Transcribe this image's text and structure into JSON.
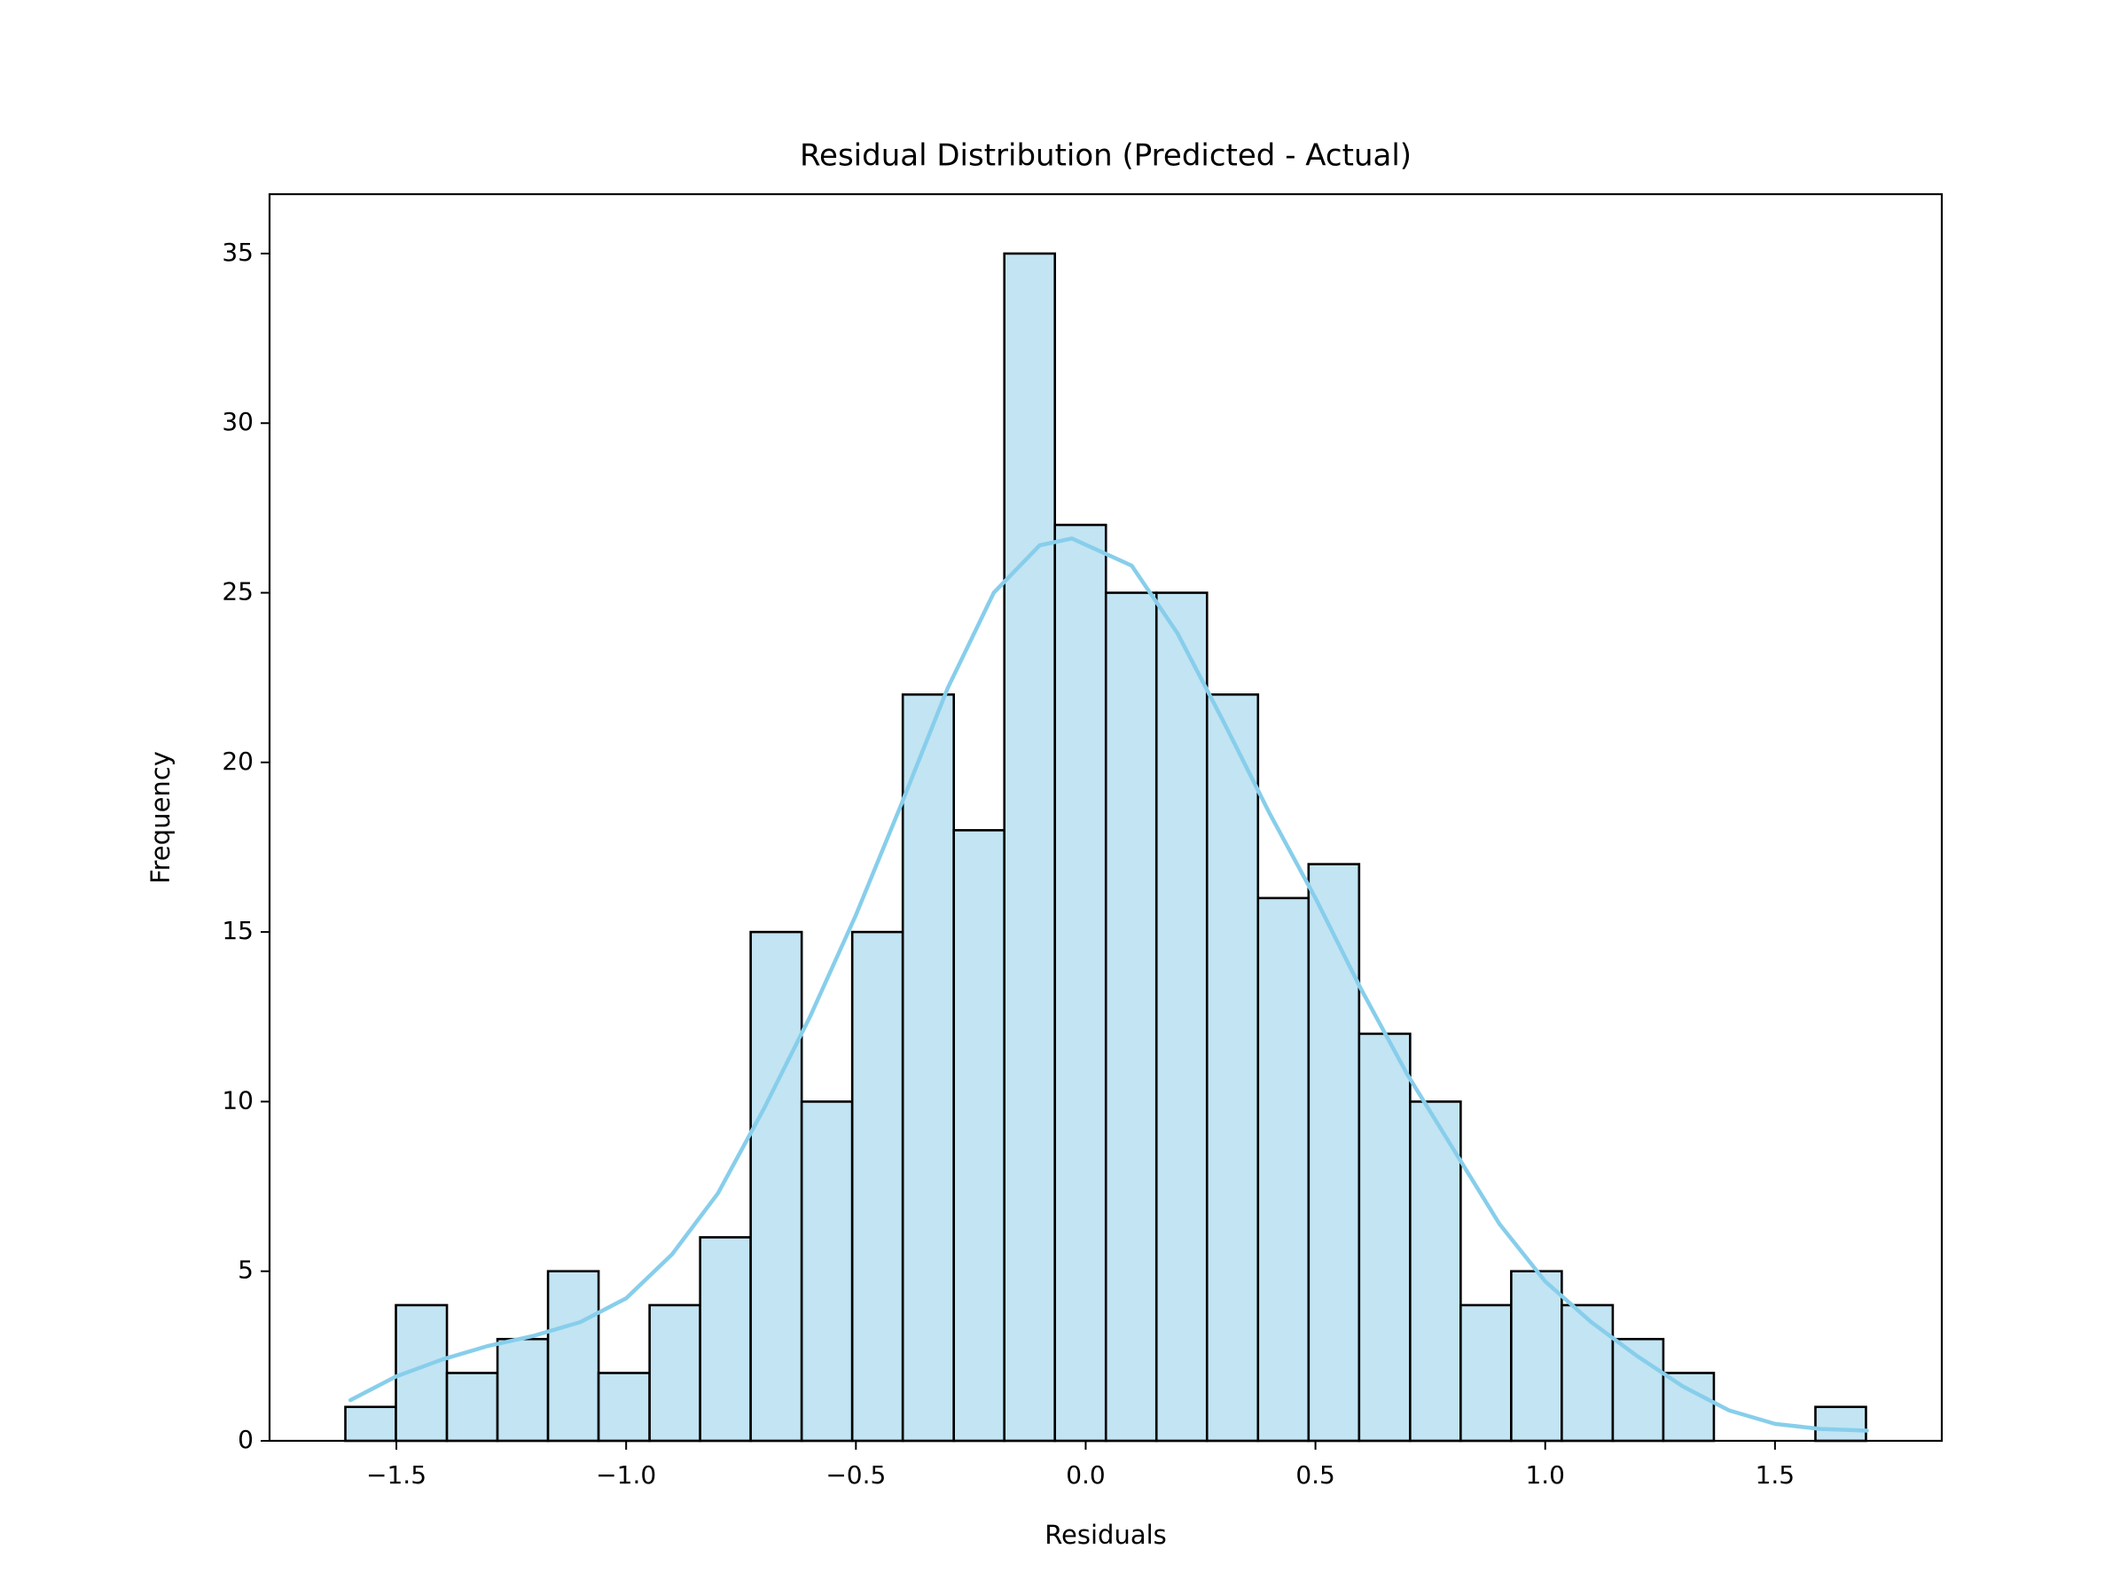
{
  "chart_data": {
    "type": "histogram",
    "title": "Residual Distribution (Predicted - Actual)",
    "x_label": "Residuals",
    "y_label": "Frequency",
    "bins": [
      -1.611,
      -1.501,
      -1.39,
      -1.28,
      -1.17,
      -1.06,
      -0.949,
      -0.839,
      -0.729,
      -0.618,
      -0.508,
      -0.398,
      -0.287,
      -0.177,
      -0.067,
      0.044,
      0.154,
      0.264,
      0.375,
      0.485,
      0.595,
      0.706,
      0.816,
      0.926,
      1.036,
      1.147,
      1.257,
      1.367,
      1.478,
      1.588,
      1.698
    ],
    "counts": [
      1,
      4,
      2,
      3,
      5,
      2,
      4,
      6,
      15,
      10,
      15,
      22,
      18,
      35,
      27,
      25,
      25,
      22,
      16,
      17,
      12,
      10,
      4,
      5,
      4,
      3,
      2,
      0,
      0,
      1
    ],
    "color": "#c2e4f3",
    "edgecolor": "#000000",
    "kde": {
      "color": "#87ceeb",
      "x": [
        -1.6,
        -1.5,
        -1.4,
        -1.3,
        -1.2,
        -1.1,
        -1.0,
        -0.9,
        -0.8,
        -0.7,
        -0.6,
        -0.5,
        -0.4,
        -0.3,
        -0.2,
        -0.1,
        -0.03,
        0.1,
        0.2,
        0.3,
        0.4,
        0.5,
        0.6,
        0.7,
        0.8,
        0.9,
        1.0,
        1.1,
        1.2,
        1.3,
        1.4,
        1.5,
        1.6,
        1.7
      ],
      "y": [
        1.2,
        1.9,
        2.4,
        2.8,
        3.1,
        3.5,
        4.2,
        5.5,
        7.3,
        9.8,
        12.5,
        15.5,
        18.8,
        22.2,
        25.0,
        26.4,
        26.6,
        25.8,
        23.8,
        21.2,
        18.5,
        16.0,
        13.3,
        10.8,
        8.6,
        6.4,
        4.7,
        3.5,
        2.5,
        1.6,
        0.9,
        0.5,
        0.35,
        0.3
      ]
    },
    "xlim": [
      -1.776,
      1.863
    ],
    "ylim": [
      0,
      36.75
    ],
    "xticks": [
      {
        "value": -1.5,
        "label": "−1.5"
      },
      {
        "value": -1.0,
        "label": "−1.0"
      },
      {
        "value": -0.5,
        "label": "−0.5"
      },
      {
        "value": 0,
        "label": "0.0"
      },
      0.5,
      {
        "value": 1.0,
        "label": "1.0"
      },
      1.5
    ],
    "yticks": [
      0,
      5,
      10,
      15,
      20,
      25,
      30,
      35
    ]
  }
}
